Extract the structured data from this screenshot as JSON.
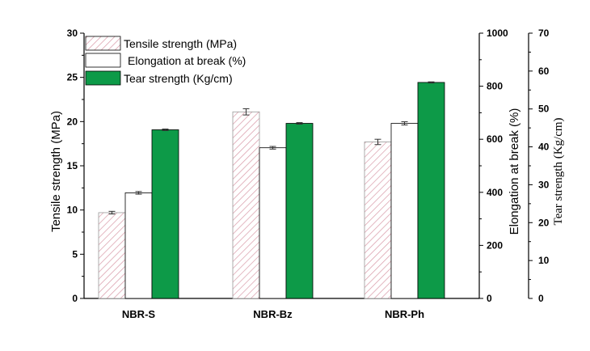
{
  "chart_data": {
    "type": "bar",
    "categories": [
      "NBR-S",
      "NBR-Bz",
      "NBR-Ph"
    ],
    "series": [
      {
        "name": "Tensile strength (MPa)",
        "axis": "left",
        "values": [
          9.7,
          21.1,
          17.7
        ],
        "errors": [
          0.15,
          0.35,
          0.3
        ],
        "fill": "hatch",
        "color": "#d99aa8"
      },
      {
        "name": "Elongation at break (%)",
        "axis": "right1",
        "values": [
          398,
          568,
          660
        ],
        "errors": [
          5,
          5,
          6
        ],
        "fill": "white",
        "color": "#ffffff"
      },
      {
        "name": "Tear strength (Kg/cm)",
        "axis": "right2",
        "values": [
          44.5,
          46.2,
          57.0
        ],
        "errors": [
          0.2,
          0.2,
          0.15
        ],
        "fill": "solid",
        "color": "#0d9a48"
      }
    ],
    "axes": {
      "left": {
        "label": "Tensile strength (MPa)",
        "ylim": [
          0,
          30
        ],
        "ticks": [
          "0",
          "5",
          "10",
          "15",
          "20",
          "25",
          "30"
        ]
      },
      "right1": {
        "label": "Elongation at break (%)",
        "ylim": [
          0,
          1000
        ],
        "ticks": [
          "0",
          "200",
          "400",
          "600",
          "800",
          "1000"
        ]
      },
      "right2": {
        "label": "Tear strength (Kg/cm)",
        "ylim": [
          0,
          70
        ],
        "ticks": [
          "0",
          "10",
          "20",
          "30",
          "40",
          "50",
          "60",
          "70"
        ]
      }
    },
    "legend_position": "top-left"
  }
}
